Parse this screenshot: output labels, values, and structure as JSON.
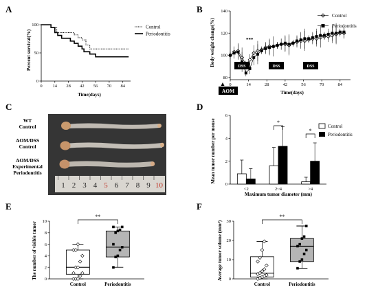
{
  "panels": {
    "A": {
      "label": "A",
      "chart_data": {
        "type": "line",
        "ylabel": "Percent survival(%)",
        "xlabel": "Time(days)",
        "xticks": [
          "0",
          "14",
          "28",
          "42",
          "56",
          "70",
          "84"
        ],
        "yticks": [
          "0",
          "50",
          "100"
        ],
        "xlim": [
          0,
          92
        ],
        "ylim": [
          0,
          100
        ],
        "series": [
          {
            "name": "Control",
            "style": "dotted",
            "x": [
              0,
              8,
              10,
              13,
              16,
              20,
              34,
              38,
              42,
              46,
              50,
              90
            ],
            "y": [
              100,
              100,
              95,
              95,
              86,
              86,
              82,
              77,
              73,
              64,
              57,
              57
            ]
          },
          {
            "name": "Periodontitis",
            "style": "solid",
            "x": [
              0,
              8,
              10,
              14,
              17,
              21,
              30,
              34,
              38,
              42,
              44,
              50,
              56,
              90
            ],
            "y": [
              100,
              100,
              95,
              86,
              81,
              76,
              71,
              67,
              62,
              57,
              52,
              48,
              43,
              43
            ]
          }
        ]
      }
    },
    "B": {
      "label": "B",
      "chart_data": {
        "type": "line",
        "ylabel": "Body weight change(%)",
        "xlabel": "Time(days)",
        "xticks": [
          "0",
          "14",
          "28",
          "42",
          "56",
          "70",
          "84"
        ],
        "yticks": [
          "80",
          "100",
          "120",
          "140"
        ],
        "xlim": [
          0,
          92
        ],
        "ylim": [
          78,
          140
        ],
        "annotation": "***",
        "dss_labels": [
          "DSS",
          "DSS",
          "DSS"
        ],
        "aom_label": "AOM",
        "series": [
          {
            "name": "Control",
            "marker": "open-diamond",
            "x": [
              0,
              3,
              6,
              9,
              12,
              15,
              18,
              21,
              24,
              27,
              30,
              33,
              36,
              39,
              42,
              45,
              48,
              51,
              54,
              57,
              60,
              63,
              66,
              69,
              72,
              75,
              78,
              81,
              84,
              87
            ],
            "y": [
              100,
              103,
              104,
              98,
              92,
              96,
              102,
              104,
              105,
              107,
              108,
              108,
              109,
              110,
              110,
              109,
              111,
              112,
              113,
              113,
              114,
              115,
              115,
              116,
              117,
              117,
              118,
              119,
              120,
              120
            ]
          },
          {
            "name": "Periodontitis",
            "marker": "filled-square",
            "x": [
              0,
              3,
              6,
              9,
              12,
              15,
              18,
              21,
              24,
              27,
              30,
              33,
              36,
              39,
              42,
              45,
              48,
              51,
              54,
              57,
              60,
              63,
              66,
              69,
              72,
              75,
              78,
              81,
              84,
              87
            ],
            "y": [
              100,
              102,
              103,
              94,
              84,
              88,
              98,
              101,
              104,
              106,
              107,
              108,
              109,
              110,
              111,
              110,
              111,
              113,
              114,
              115,
              115,
              116,
              117,
              118,
              118,
              119,
              120,
              120,
              121,
              121
            ]
          }
        ]
      }
    },
    "C": {
      "label": "C",
      "rows": [
        {
          "line1": "WT",
          "line2": "Control",
          "line3": ""
        },
        {
          "line1": "AOM/DSS",
          "line2": "Control",
          "line3": ""
        },
        {
          "line1": "AOM/DSS",
          "line2": "Experimental",
          "line3": "Periodontitis"
        }
      ],
      "ruler_numbers": [
        "1",
        "2",
        "3",
        "4",
        "5",
        "6",
        "7",
        "8",
        "9",
        "10"
      ]
    },
    "D": {
      "label": "D",
      "chart_data": {
        "type": "bar",
        "ylabel": "Mean tumor number per mouse",
        "xlabel": "Maximum tumor diameter (mm)",
        "categories": [
          "<2",
          "2~4",
          ">4"
        ],
        "yticks": [
          "0",
          "2",
          "4",
          "6"
        ],
        "ylim": [
          0,
          6
        ],
        "series": [
          {
            "name": "Control",
            "fill": "white",
            "values": [
              0.9,
              1.6,
              0.2
            ],
            "errors": [
              1.2,
              1.6,
              0.4
            ]
          },
          {
            "name": "Periodontitis",
            "fill": "black",
            "values": [
              0.45,
              3.3,
              2.0
            ],
            "errors": [
              0.9,
              1.7,
              1.6
            ]
          }
        ],
        "significance": [
          "*",
          "*"
        ]
      }
    },
    "E": {
      "label": "E",
      "chart_data": {
        "type": "box",
        "ylabel": "The number of visible tumor",
        "categories": [
          "Control",
          "Periodontitis"
        ],
        "yticks": [
          "0",
          "2",
          "4",
          "6",
          "8",
          "10"
        ],
        "ylim": [
          0,
          10
        ],
        "significance": "**",
        "boxes": [
          {
            "min": 0,
            "q1": 0.8,
            "median": 2,
            "q3": 5,
            "max": 6,
            "points": [
              0,
              0,
              0,
              0.5,
              1,
              1,
              2,
              2,
              3,
              4,
              5,
              5,
              6
            ]
          },
          {
            "min": 2,
            "q1": 3.8,
            "median": 5.5,
            "q3": 8.3,
            "max": 9,
            "points": [
              2,
              3.8,
              4,
              5,
              5.5,
              6,
              8,
              8.3,
              8.5,
              9,
              9
            ]
          }
        ]
      }
    },
    "F": {
      "label": "F",
      "chart_data": {
        "type": "box",
        "ylabel": "Average tumor volume (mm³)",
        "categories": [
          "Control",
          "Periodontitis"
        ],
        "yticks": [
          "0",
          "10",
          "20",
          "30"
        ],
        "ylim": [
          0,
          30
        ],
        "significance": "**",
        "boxes": [
          {
            "min": 0,
            "q1": 1,
            "median": 3,
            "q3": 11.5,
            "max": 19.5,
            "points": [
              0,
              0.5,
              1,
              1.5,
              2,
              2.5,
              3,
              4,
              5,
              7,
              9,
              11,
              15,
              19.5
            ]
          },
          {
            "min": 5.5,
            "q1": 9,
            "median": 17,
            "q3": 21,
            "max": 27.5,
            "points": [
              5.5,
              9,
              10,
              13,
              15,
              17,
              18,
              21,
              22,
              27.5
            ]
          }
        ]
      }
    }
  }
}
